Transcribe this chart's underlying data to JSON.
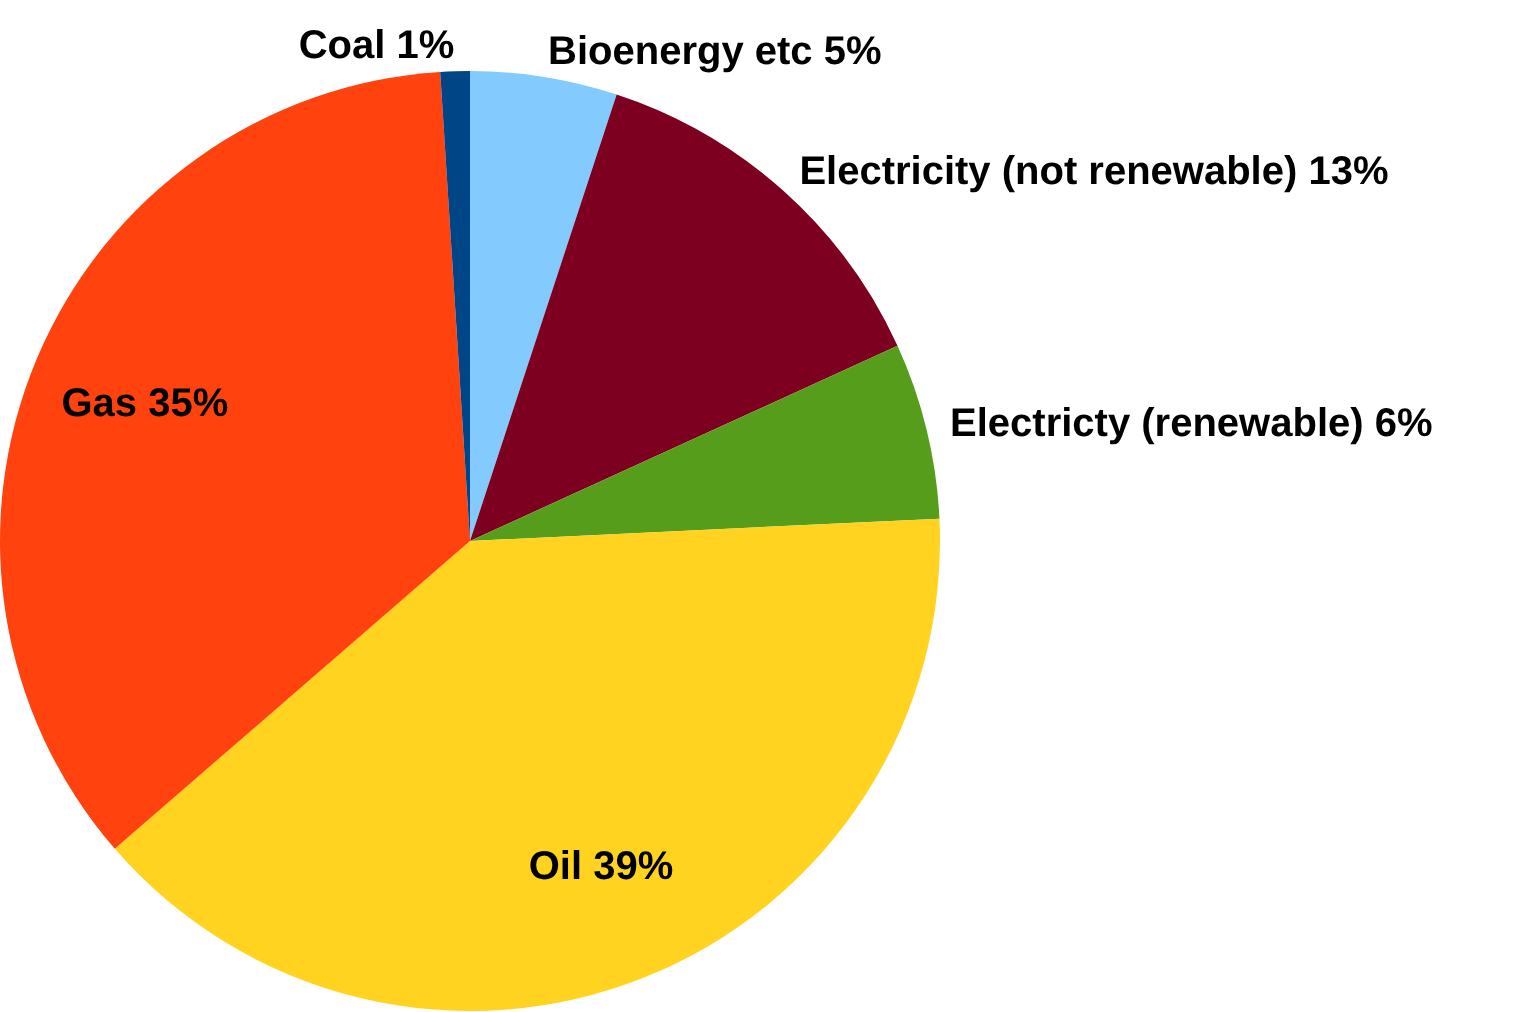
{
  "chart_data": {
    "type": "pie",
    "categories": [
      "Bioenergy etc",
      "Electricity (not renewable)",
      "Electricty (renewable)",
      "Oil",
      "Gas",
      "Coal"
    ],
    "values": [
      5,
      13,
      6,
      39,
      35,
      1
    ],
    "value_labels": [
      "5%",
      "13%",
      "6%",
      "39%",
      "35%",
      "1%"
    ],
    "colors": [
      "#83caff",
      "#7e0021",
      "#579d1c",
      "#ffd320",
      "#ff420e",
      "#004586"
    ],
    "legend": false
  }
}
